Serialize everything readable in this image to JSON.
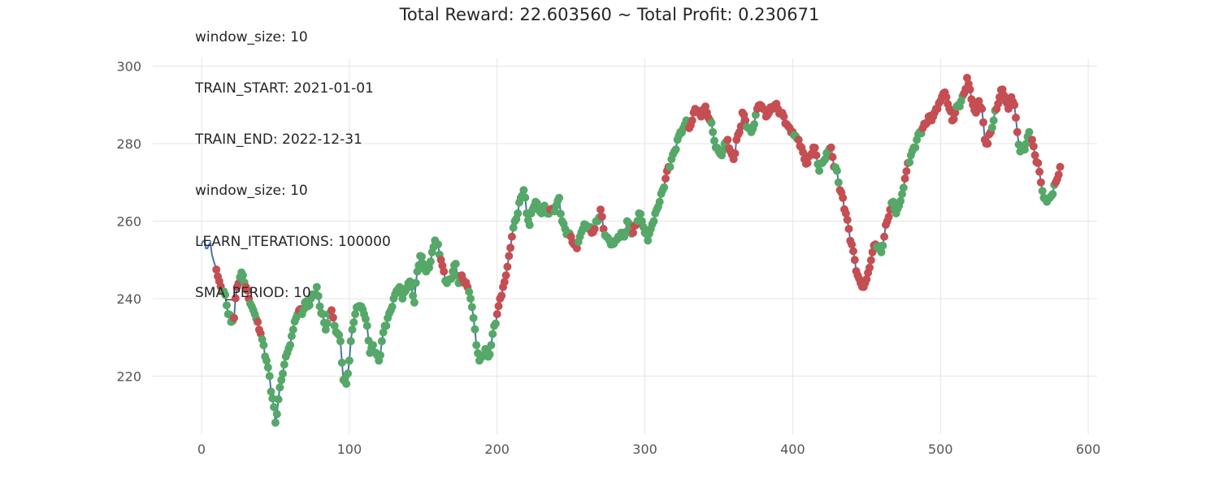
{
  "info_lines": [
    "window_size: 10",
    "TRAIN_START: 2021-01-01",
    "TRAIN_END: 2022-12-31",
    "window_size: 10",
    "LEARN_ITERATIONS: 100000",
    "SMA_PERIOD: 10"
  ],
  "colors": {
    "line": "#4c72b0",
    "short_marker": "#c44e52",
    "long_marker": "#55a868",
    "grid": "#e5e5e5",
    "tick_text": "#555555",
    "text": "#262626"
  },
  "chart_data": {
    "type": "line",
    "title": "Total Reward: 22.603560 ~ Total Profit: 0.230671",
    "xlabel": "",
    "ylabel": "",
    "xlim": [
      -33,
      606
    ],
    "ylim": [
      205,
      302
    ],
    "xticks": [
      0,
      100,
      200,
      300,
      400,
      500,
      600
    ],
    "yticks": [
      220,
      240,
      260,
      280,
      300
    ],
    "grid": true,
    "legend": "none",
    "series": [
      {
        "kind": "price-line",
        "anchors": [
          [
            0,
            254
          ],
          [
            2,
            255
          ],
          [
            4,
            253
          ],
          [
            6,
            254.5
          ],
          [
            8,
            250
          ],
          [
            10,
            247.5
          ],
          [
            12,
            244.5
          ],
          [
            14,
            242
          ],
          [
            16,
            241
          ],
          [
            18,
            236
          ],
          [
            20,
            234
          ],
          [
            22,
            235
          ],
          [
            24,
            243
          ],
          [
            26,
            245.5
          ],
          [
            28,
            246
          ],
          [
            30,
            243
          ],
          [
            32,
            240
          ],
          [
            34,
            238
          ],
          [
            36,
            236
          ],
          [
            38,
            234
          ],
          [
            40,
            231
          ],
          [
            42,
            228
          ],
          [
            44,
            224
          ],
          [
            46,
            220
          ],
          [
            47,
            216
          ],
          [
            49,
            212
          ],
          [
            50,
            208
          ],
          [
            52,
            214
          ],
          [
            54,
            219
          ],
          [
            56,
            223
          ],
          [
            58,
            226
          ],
          [
            60,
            228
          ],
          [
            62,
            232
          ],
          [
            64,
            235
          ],
          [
            66,
            237
          ],
          [
            68,
            236
          ],
          [
            70,
            239
          ],
          [
            72,
            238
          ],
          [
            74,
            240
          ],
          [
            76,
            241
          ],
          [
            78,
            243
          ],
          [
            80,
            238
          ],
          [
            82,
            236
          ],
          [
            84,
            232
          ],
          [
            86,
            236
          ],
          [
            88,
            237
          ],
          [
            90,
            233
          ],
          [
            92,
            231
          ],
          [
            94,
            229
          ],
          [
            96,
            219
          ],
          [
            98,
            218
          ],
          [
            100,
            224
          ],
          [
            102,
            232
          ],
          [
            104,
            236
          ],
          [
            106,
            238
          ],
          [
            108,
            238
          ],
          [
            110,
            236
          ],
          [
            112,
            233
          ],
          [
            114,
            226
          ],
          [
            116,
            228
          ],
          [
            118,
            226
          ],
          [
            120,
            224
          ],
          [
            122,
            229
          ],
          [
            124,
            233
          ],
          [
            126,
            235
          ],
          [
            128,
            237
          ],
          [
            130,
            240
          ],
          [
            132,
            242
          ],
          [
            134,
            243
          ],
          [
            136,
            240
          ],
          [
            138,
            242
          ],
          [
            140,
            244
          ],
          [
            142,
            243
          ],
          [
            144,
            239
          ],
          [
            146,
            247
          ],
          [
            148,
            251
          ],
          [
            150,
            249
          ],
          [
            152,
            247
          ],
          [
            154,
            248
          ],
          [
            156,
            252
          ],
          [
            158,
            255
          ],
          [
            160,
            254
          ],
          [
            162,
            250
          ],
          [
            164,
            247
          ],
          [
            166,
            244
          ],
          [
            168,
            245
          ],
          [
            170,
            247
          ],
          [
            172,
            249
          ],
          [
            174,
            244
          ],
          [
            176,
            246
          ],
          [
            178,
            244
          ],
          [
            180,
            243
          ],
          [
            182,
            240
          ],
          [
            184,
            235
          ],
          [
            186,
            228
          ],
          [
            188,
            224
          ],
          [
            190,
            225
          ],
          [
            192,
            227
          ],
          [
            194,
            225
          ],
          [
            196,
            228
          ],
          [
            198,
            233
          ],
          [
            200,
            236
          ],
          [
            202,
            240
          ],
          [
            204,
            243
          ],
          [
            206,
            246
          ],
          [
            208,
            251
          ],
          [
            210,
            256
          ],
          [
            212,
            260
          ],
          [
            214,
            262
          ],
          [
            216,
            266
          ],
          [
            218,
            268
          ],
          [
            220,
            262
          ],
          [
            222,
            259
          ],
          [
            224,
            263
          ],
          [
            226,
            265
          ],
          [
            228,
            263
          ],
          [
            230,
            262
          ],
          [
            232,
            264
          ],
          [
            234,
            262
          ],
          [
            236,
            263
          ],
          [
            238,
            263
          ],
          [
            240,
            264
          ],
          [
            242,
            266
          ],
          [
            244,
            260
          ],
          [
            246,
            258
          ],
          [
            248,
            257
          ],
          [
            250,
            256
          ],
          [
            252,
            254
          ],
          [
            254,
            253
          ],
          [
            256,
            256
          ],
          [
            258,
            258
          ],
          [
            260,
            259
          ],
          [
            262,
            258
          ],
          [
            264,
            257
          ],
          [
            266,
            258
          ],
          [
            268,
            260
          ],
          [
            270,
            263
          ],
          [
            272,
            258
          ],
          [
            274,
            256
          ],
          [
            276,
            255
          ],
          [
            278,
            254
          ],
          [
            280,
            255
          ],
          [
            282,
            256
          ],
          [
            284,
            257
          ],
          [
            286,
            256
          ],
          [
            288,
            260
          ],
          [
            290,
            258
          ],
          [
            292,
            257
          ],
          [
            294,
            259
          ],
          [
            296,
            262
          ],
          [
            298,
            260
          ],
          [
            300,
            257
          ],
          [
            302,
            255
          ],
          [
            304,
            258
          ],
          [
            306,
            260
          ],
          [
            308,
            263
          ],
          [
            310,
            265
          ],
          [
            312,
            268
          ],
          [
            314,
            271
          ],
          [
            316,
            274
          ],
          [
            318,
            276
          ],
          [
            320,
            278
          ],
          [
            322,
            281
          ],
          [
            324,
            283
          ],
          [
            326,
            284
          ],
          [
            328,
            286
          ],
          [
            330,
            284
          ],
          [
            332,
            286
          ],
          [
            334,
            289
          ],
          [
            336,
            288
          ],
          [
            338,
            287
          ],
          [
            340,
            289
          ],
          [
            342,
            288
          ],
          [
            344,
            286
          ],
          [
            346,
            283
          ],
          [
            348,
            279
          ],
          [
            350,
            278
          ],
          [
            352,
            277
          ],
          [
            354,
            280
          ],
          [
            356,
            281
          ],
          [
            358,
            278
          ],
          [
            360,
            276
          ],
          [
            362,
            281
          ],
          [
            364,
            283
          ],
          [
            366,
            288
          ],
          [
            368,
            286
          ],
          [
            370,
            284
          ],
          [
            372,
            283
          ],
          [
            374,
            285
          ],
          [
            376,
            289
          ],
          [
            378,
            290
          ],
          [
            380,
            289
          ],
          [
            382,
            287
          ],
          [
            384,
            288
          ],
          [
            386,
            289
          ],
          [
            388,
            290
          ],
          [
            390,
            289
          ],
          [
            392,
            288
          ],
          [
            394,
            287
          ],
          [
            396,
            285
          ],
          [
            398,
            284
          ],
          [
            400,
            283
          ],
          [
            402,
            282
          ],
          [
            404,
            281
          ],
          [
            406,
            279
          ],
          [
            408,
            276
          ],
          [
            410,
            275
          ],
          [
            412,
            277
          ],
          [
            414,
            279
          ],
          [
            416,
            277
          ],
          [
            418,
            273
          ],
          [
            420,
            275
          ],
          [
            422,
            276
          ],
          [
            424,
            278
          ],
          [
            426,
            279
          ],
          [
            428,
            274
          ],
          [
            430,
            273
          ],
          [
            432,
            268
          ],
          [
            434,
            266
          ],
          [
            436,
            262
          ],
          [
            438,
            258
          ],
          [
            440,
            254
          ],
          [
            442,
            250
          ],
          [
            444,
            246
          ],
          [
            446,
            244
          ],
          [
            448,
            243
          ],
          [
            450,
            245
          ],
          [
            452,
            248
          ],
          [
            454,
            252
          ],
          [
            456,
            254
          ],
          [
            458,
            253
          ],
          [
            460,
            252
          ],
          [
            462,
            256
          ],
          [
            464,
            260
          ],
          [
            466,
            263
          ],
          [
            468,
            265
          ],
          [
            470,
            262
          ],
          [
            472,
            264
          ],
          [
            474,
            267
          ],
          [
            476,
            271
          ],
          [
            478,
            275
          ],
          [
            480,
            277
          ],
          [
            482,
            279
          ],
          [
            484,
            281
          ],
          [
            486,
            283
          ],
          [
            488,
            284
          ],
          [
            490,
            285
          ],
          [
            492,
            287
          ],
          [
            494,
            286
          ],
          [
            496,
            288
          ],
          [
            498,
            289
          ],
          [
            500,
            291
          ],
          [
            502,
            293
          ],
          [
            504,
            292
          ],
          [
            506,
            289
          ],
          [
            508,
            286
          ],
          [
            510,
            288
          ],
          [
            512,
            290
          ],
          [
            514,
            291
          ],
          [
            516,
            293
          ],
          [
            518,
            297
          ],
          [
            520,
            294
          ],
          [
            522,
            290
          ],
          [
            524,
            288
          ],
          [
            526,
            291
          ],
          [
            528,
            289
          ],
          [
            530,
            281
          ],
          [
            532,
            280
          ],
          [
            534,
            283
          ],
          [
            536,
            286
          ],
          [
            538,
            289
          ],
          [
            540,
            292
          ],
          [
            542,
            294
          ],
          [
            544,
            291
          ],
          [
            546,
            289
          ],
          [
            548,
            292
          ],
          [
            550,
            290
          ],
          [
            552,
            283
          ],
          [
            554,
            278
          ],
          [
            556,
            279
          ],
          [
            558,
            280
          ],
          [
            560,
            283
          ],
          [
            562,
            281
          ],
          [
            564,
            277
          ],
          [
            566,
            275
          ],
          [
            568,
            270
          ],
          [
            570,
            266
          ],
          [
            572,
            265
          ],
          [
            574,
            266
          ],
          [
            576,
            267
          ],
          [
            578,
            270
          ],
          [
            580,
            272
          ],
          [
            581,
            274
          ]
        ]
      },
      {
        "kind": "short-markers",
        "color": "#c44e52"
      },
      {
        "kind": "long-markers",
        "color": "#55a868"
      }
    ],
    "markers": {
      "start_index": 10,
      "end_index": 581,
      "short_spans": [
        [
          10,
          14
        ],
        [
          22,
          25
        ],
        [
          30,
          32
        ],
        [
          38,
          40
        ],
        [
          66,
          67
        ],
        [
          88,
          89
        ],
        [
          162,
          164
        ],
        [
          176,
          180
        ],
        [
          200,
          210
        ],
        [
          236,
          238
        ],
        [
          250,
          254
        ],
        [
          264,
          266
        ],
        [
          270,
          272
        ],
        [
          292,
          294
        ],
        [
          314,
          316
        ],
        [
          330,
          344
        ],
        [
          356,
          368
        ],
        [
          376,
          400
        ],
        [
          404,
          416
        ],
        [
          426,
          428
        ],
        [
          432,
          456
        ],
        [
          462,
          466
        ],
        [
          476,
          478
        ],
        [
          488,
          510
        ],
        [
          516,
          534
        ],
        [
          538,
          552
        ],
        [
          562,
          568
        ],
        [
          578,
          581
        ]
      ]
    }
  }
}
